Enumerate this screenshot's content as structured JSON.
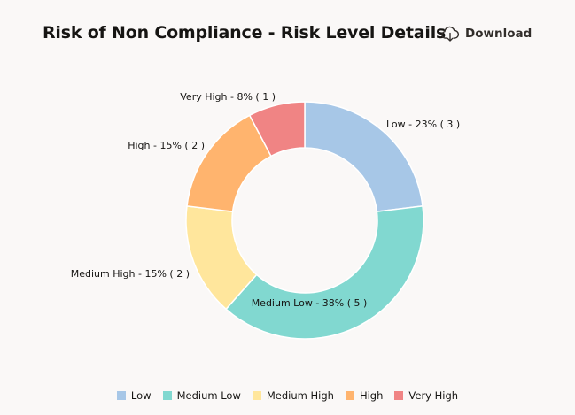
{
  "header": {
    "title": "Risk of Non Compliance - Risk Level Details",
    "download_label": "Download",
    "download_icon": "cloud-download-icon"
  },
  "chart_data": {
    "type": "pie",
    "variant": "donut",
    "title": "Risk of Non Compliance - Risk Level Details",
    "categories": [
      "Low",
      "Medium Low",
      "Medium High",
      "High",
      "Very High"
    ],
    "values": [
      3,
      5,
      2,
      2,
      1
    ],
    "percentages": [
      23,
      38,
      15,
      15,
      8
    ],
    "colors": [
      "#a7c7e7",
      "#81d8d0",
      "#ffe69c",
      "#ffb46e",
      "#f08484"
    ],
    "slice_labels": [
      "Low - 23% ( 3 )",
      "Medium Low - 38% ( 5 )",
      "Medium High - 15% ( 2 )",
      "High - 15% ( 2 )",
      "Very High - 8% ( 1 )"
    ],
    "legend": {
      "position": "bottom",
      "entries": [
        "Low",
        "Medium Low",
        "Medium High",
        "High",
        "Very High"
      ]
    }
  }
}
